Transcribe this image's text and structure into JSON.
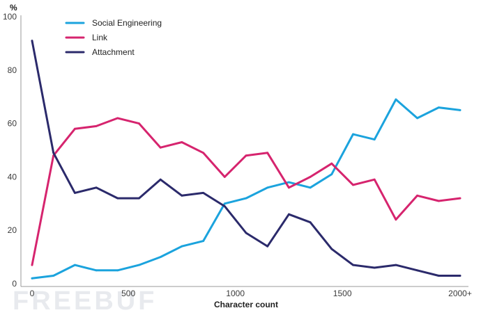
{
  "chart_data": {
    "type": "line",
    "title": "",
    "xlabel": "Character count",
    "ylabel": "%",
    "x_index": [
      0,
      1,
      2,
      3,
      4,
      5,
      6,
      7,
      8,
      9,
      10,
      11,
      12,
      13,
      14,
      15,
      16,
      17,
      18,
      19,
      20
    ],
    "xticks": [
      {
        "at": 0,
        "label": "0"
      },
      {
        "at": 4.5,
        "label": "500"
      },
      {
        "at": 9.5,
        "label": "1000"
      },
      {
        "at": 14.5,
        "label": "1500"
      },
      {
        "at": 20,
        "label": "2000+"
      }
    ],
    "yticks": [
      0,
      20,
      40,
      60,
      80,
      100
    ],
    "ylim": [
      0,
      100
    ],
    "grid": false,
    "legend": "top-left",
    "series": [
      {
        "name": "Social Engineering",
        "color": "#1ba3dd",
        "values": [
          2,
          3,
          7,
          5,
          5,
          7,
          10,
          14,
          16,
          30,
          32,
          36,
          38,
          36,
          41,
          56,
          54,
          69,
          62,
          66,
          65
        ]
      },
      {
        "name": "Link",
        "color": "#d6246e",
        "values": [
          7,
          48,
          58,
          59,
          62,
          60,
          51,
          53,
          49,
          40,
          48,
          49,
          36,
          40,
          45,
          37,
          39,
          24,
          33,
          31,
          32
        ]
      },
      {
        "name": "Attachment",
        "color": "#2b2a6b",
        "values": [
          91,
          49,
          34,
          36,
          32,
          32,
          39,
          33,
          34,
          29,
          19,
          14,
          26,
          23,
          13,
          7,
          6,
          7,
          5,
          3,
          3
        ]
      }
    ]
  },
  "watermark": {
    "text": "FREEBUF"
  }
}
